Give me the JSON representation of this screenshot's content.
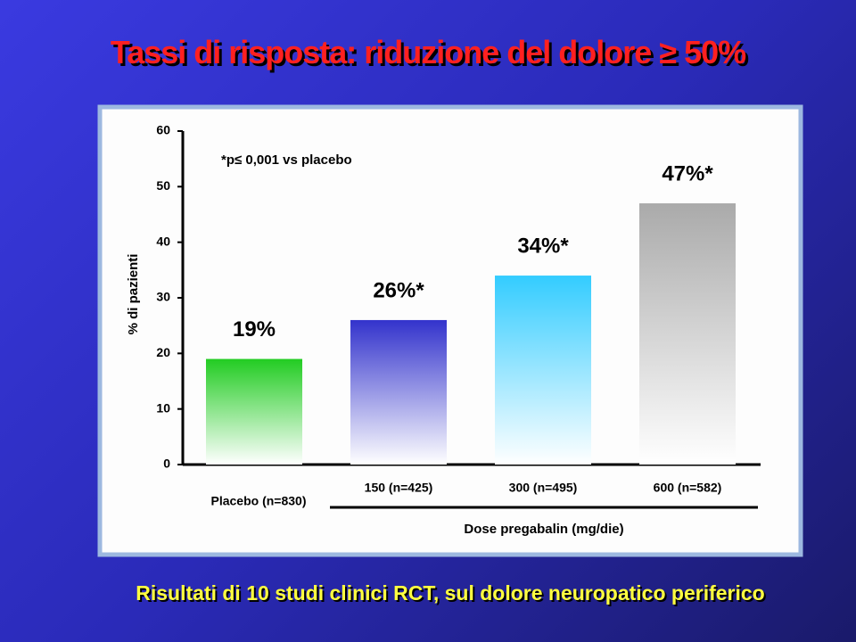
{
  "title": "Tassi di risposta: riduzione del dolore ≥ 50%",
  "footer": "Risultati di 10 studi clinici RCT, sul dolore neuropatico periferico",
  "chart_data": {
    "type": "bar",
    "categories": [
      "Placebo (n=830)",
      "150 (n=425)",
      "300 (n=495)",
      "600 (n=582)"
    ],
    "values": [
      19,
      26,
      34,
      47
    ],
    "value_labels": [
      "19%",
      "26%*",
      "34%*",
      "47%*"
    ],
    "colors": [
      "#22cc22",
      "#3333cc",
      "#33ccff",
      "#aaaaaa"
    ],
    "y_label": "% di pazienti",
    "x_label": "Dose pregabalin (mg/die)",
    "annotation": "*p≤ 0,001 vs placebo",
    "ylim": [
      0,
      60
    ],
    "yticks": [
      0,
      10,
      20,
      30,
      40,
      50,
      60
    ]
  }
}
